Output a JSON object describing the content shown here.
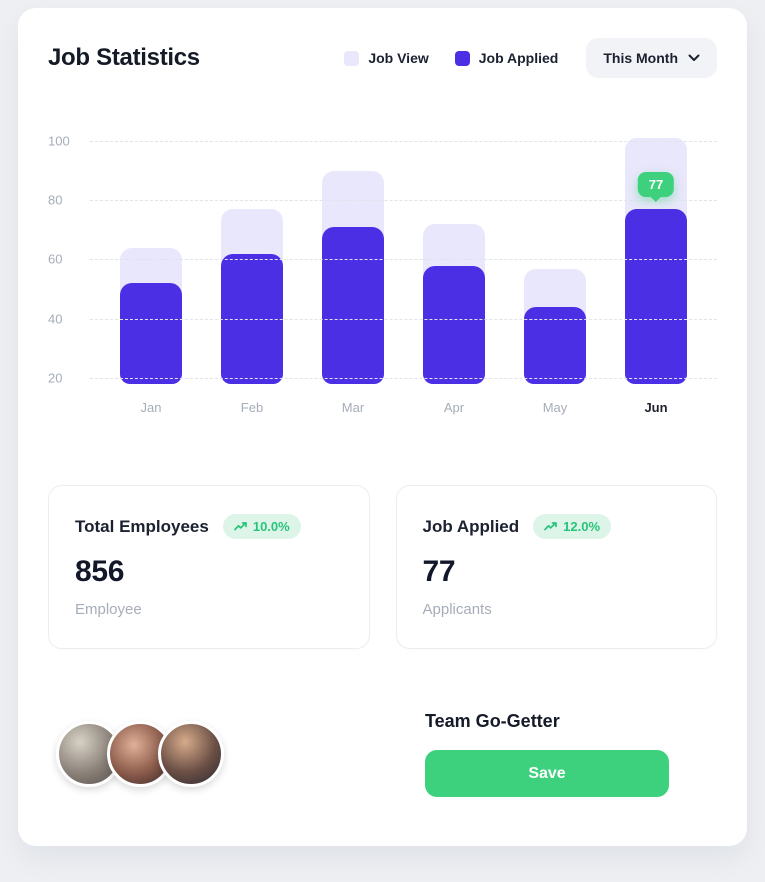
{
  "header": {
    "title": "Job Statistics",
    "legend": [
      {
        "label": "Job View",
        "color": "#e9e7fb"
      },
      {
        "label": "Job Applied",
        "color": "#4b2fe4"
      }
    ],
    "period_selector": {
      "label": "This Month"
    }
  },
  "chart_data": {
    "type": "bar",
    "title": "Job Statistics",
    "categories": [
      "Jan",
      "Feb",
      "Mar",
      "Apr",
      "May",
      "Jun"
    ],
    "series": [
      {
        "name": "Job View",
        "color": "#e9e7fb",
        "values": [
          64,
          77,
          90,
          72,
          57,
          101
        ]
      },
      {
        "name": "Job Applied",
        "color": "#4b2fe4",
        "values": [
          52,
          62,
          71,
          58,
          44,
          77
        ]
      }
    ],
    "y_ticks": [
      100,
      80,
      60,
      40,
      20
    ],
    "ylim": [
      0,
      105
    ],
    "grid": "horizontal-dashed",
    "legend_position": "top",
    "highlight": {
      "category": "Jun",
      "series": "Job Applied",
      "value": 77,
      "tooltip": "77"
    }
  },
  "stats": [
    {
      "title": "Total Employees",
      "badge": "10.0%",
      "value": "856",
      "subtitle": "Employee"
    },
    {
      "title": "Job Applied",
      "badge": "12.0%",
      "value": "77",
      "subtitle": "Applicants"
    }
  ],
  "team": {
    "title": "Team Go-Getter",
    "save_label": "Save",
    "avatar_count": 3
  },
  "colors": {
    "accent_purple": "#4b2fe4",
    "light_purple": "#e9e7fb",
    "green": "#3dd17e",
    "badge_bg": "#ddf5e8",
    "badge_text": "#27c479",
    "muted_text": "#a6adb8",
    "page_bg": "#edeff2"
  }
}
